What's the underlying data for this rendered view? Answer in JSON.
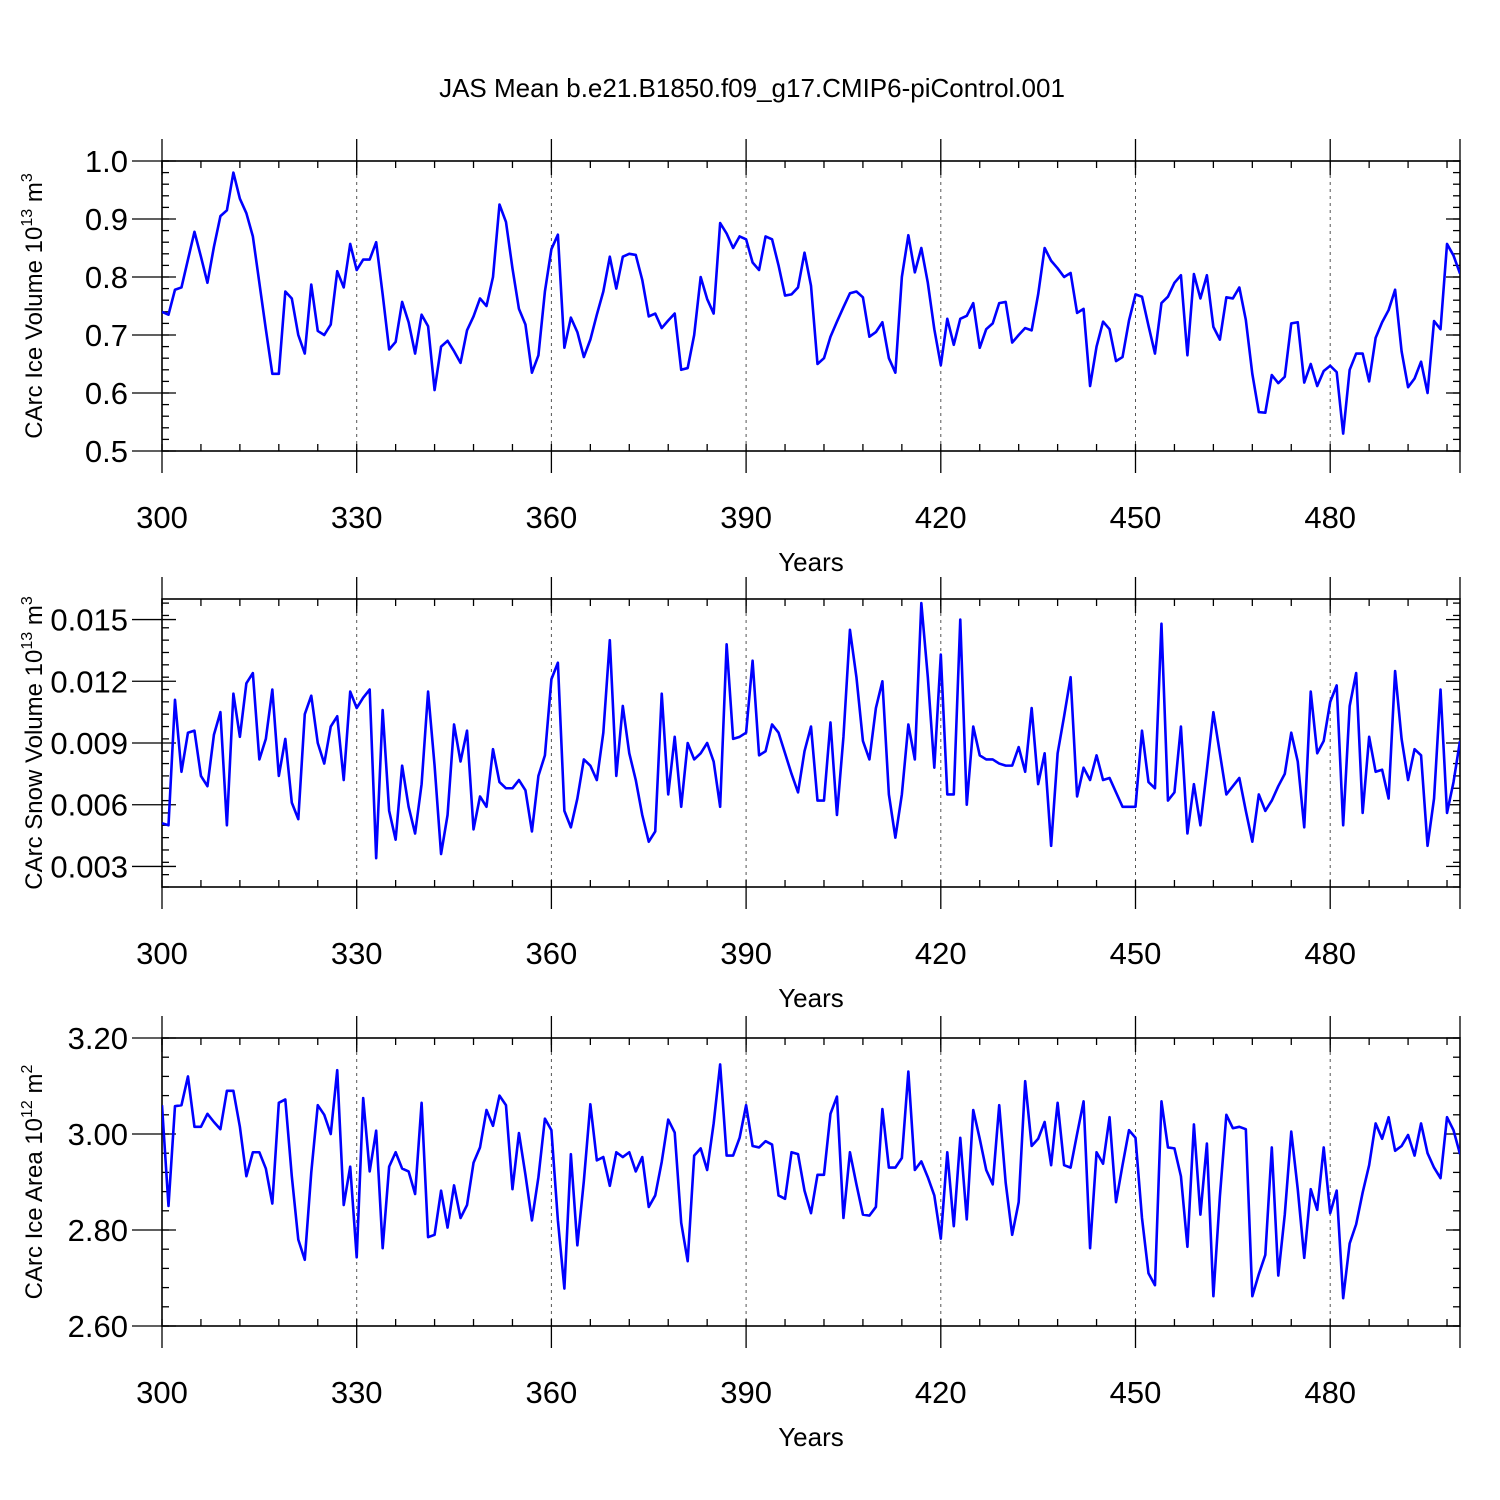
{
  "title": "JAS Mean b.e21.B1850.f09_g17.CMIP6-piControl.001",
  "series_color": "#0000ff",
  "chart_data": [
    {
      "type": "line",
      "title": "JAS Mean b.e21.B1850.f09_g17.CMIP6-piControl.001",
      "xlabel": "Years",
      "ylabel": {
        "main": "CArc Ice Volume 10",
        "exp": "13",
        "unit": " m",
        "unit_exp": "3"
      },
      "xlim": [
        300,
        500
      ],
      "ylim": [
        0.5,
        1.0
      ],
      "xticks": [
        300,
        330,
        360,
        390,
        420,
        450,
        480
      ],
      "xtick_labels": [
        "300",
        "330",
        "360",
        "390",
        "420",
        "450",
        "480"
      ],
      "yticks": [
        0.5,
        0.6,
        0.7,
        0.8,
        0.9,
        1.0
      ],
      "ytick_labels": [
        "0.5",
        "0.6",
        "0.7",
        "0.8",
        "0.9",
        "1.0"
      ],
      "x_start": 300,
      "values": [
        0.74,
        0.735,
        0.778,
        0.782,
        0.83,
        0.878,
        0.835,
        0.79,
        0.852,
        0.905,
        0.915,
        0.98,
        0.935,
        0.91,
        0.87,
        0.79,
        0.71,
        0.633,
        0.633,
        0.775,
        0.763,
        0.7,
        0.668,
        0.787,
        0.707,
        0.7,
        0.718,
        0.81,
        0.782,
        0.857,
        0.812,
        0.83,
        0.83,
        0.86,
        0.77,
        0.675,
        0.688,
        0.757,
        0.722,
        0.668,
        0.735,
        0.715,
        0.605,
        0.68,
        0.69,
        0.672,
        0.652,
        0.708,
        0.732,
        0.763,
        0.75,
        0.8,
        0.925,
        0.895,
        0.815,
        0.745,
        0.718,
        0.635,
        0.665,
        0.775,
        0.848,
        0.873,
        0.678,
        0.73,
        0.705,
        0.662,
        0.692,
        0.735,
        0.775,
        0.835,
        0.78,
        0.835,
        0.84,
        0.838,
        0.795,
        0.732,
        0.737,
        0.712,
        0.725,
        0.737,
        0.64,
        0.643,
        0.7,
        0.8,
        0.762,
        0.737,
        0.893,
        0.875,
        0.85,
        0.87,
        0.865,
        0.825,
        0.812,
        0.87,
        0.865,
        0.82,
        0.768,
        0.77,
        0.782,
        0.842,
        0.785,
        0.65,
        0.66,
        0.697,
        0.723,
        0.748,
        0.772,
        0.775,
        0.765,
        0.697,
        0.705,
        0.722,
        0.66,
        0.635,
        0.8,
        0.872,
        0.808,
        0.85,
        0.79,
        0.71,
        0.648,
        0.728,
        0.683,
        0.728,
        0.733,
        0.755,
        0.678,
        0.71,
        0.72,
        0.755,
        0.757,
        0.687,
        0.7,
        0.712,
        0.708,
        0.77,
        0.85,
        0.828,
        0.815,
        0.8,
        0.807,
        0.738,
        0.745,
        0.612,
        0.68,
        0.723,
        0.71,
        0.655,
        0.662,
        0.725,
        0.77,
        0.766,
        0.716,
        0.668,
        0.755,
        0.766,
        0.79,
        0.803,
        0.665,
        0.805,
        0.763,
        0.803,
        0.714,
        0.692,
        0.765,
        0.763,
        0.782,
        0.726,
        0.633,
        0.567,
        0.566,
        0.631,
        0.617,
        0.628,
        0.72,
        0.722,
        0.618,
        0.65,
        0.612,
        0.638,
        0.647,
        0.636,
        0.53,
        0.64,
        0.668,
        0.668,
        0.62,
        0.695,
        0.722,
        0.743,
        0.778,
        0.672,
        0.61,
        0.625,
        0.654,
        0.6,
        0.724,
        0.71,
        0.857,
        0.837,
        0.806
      ]
    },
    {
      "type": "line",
      "title": "",
      "xlabel": "Years",
      "ylabel": {
        "main": "CArc Snow Volume 10",
        "exp": "13",
        "unit": " m",
        "unit_exp": "3"
      },
      "xlim": [
        300,
        500
      ],
      "ylim": [
        0.002,
        0.016
      ],
      "xticks": [
        300,
        330,
        360,
        390,
        420,
        450,
        480
      ],
      "xtick_labels": [
        "300",
        "330",
        "360",
        "390",
        "420",
        "450",
        "480"
      ],
      "yticks": [
        0.003,
        0.006,
        0.009,
        0.012,
        0.015
      ],
      "ytick_labels": [
        "0.003",
        "0.006",
        "0.009",
        "0.012",
        "0.015"
      ],
      "x_start": 300,
      "values": [
        0.0051,
        0.005,
        0.0111,
        0.0076,
        0.0095,
        0.0096,
        0.0074,
        0.0069,
        0.0094,
        0.0105,
        0.005,
        0.0114,
        0.0093,
        0.0119,
        0.0124,
        0.0082,
        0.0092,
        0.0116,
        0.0074,
        0.0092,
        0.0061,
        0.0053,
        0.0104,
        0.0113,
        0.009,
        0.008,
        0.0098,
        0.0103,
        0.0072,
        0.0115,
        0.0107,
        0.0112,
        0.0116,
        0.0034,
        0.0106,
        0.0057,
        0.0043,
        0.0079,
        0.0059,
        0.0046,
        0.007,
        0.0115,
        0.0079,
        0.0036,
        0.0055,
        0.0099,
        0.0081,
        0.0096,
        0.0048,
        0.0064,
        0.0059,
        0.0087,
        0.0071,
        0.0068,
        0.0068,
        0.0072,
        0.0067,
        0.0047,
        0.0074,
        0.0084,
        0.0121,
        0.0129,
        0.0057,
        0.0049,
        0.0063,
        0.0082,
        0.0079,
        0.0072,
        0.0095,
        0.014,
        0.0074,
        0.0108,
        0.0085,
        0.0072,
        0.0055,
        0.0042,
        0.0047,
        0.0114,
        0.0065,
        0.0093,
        0.0059,
        0.009,
        0.0082,
        0.0085,
        0.009,
        0.0081,
        0.0059,
        0.0138,
        0.0092,
        0.0093,
        0.0095,
        0.013,
        0.0084,
        0.0086,
        0.0099,
        0.0095,
        0.0085,
        0.0075,
        0.0066,
        0.0086,
        0.0098,
        0.0062,
        0.0062,
        0.01,
        0.0055,
        0.0093,
        0.0145,
        0.0122,
        0.0091,
        0.0082,
        0.0107,
        0.012,
        0.0065,
        0.0044,
        0.0065,
        0.0099,
        0.0082,
        0.0158,
        0.0122,
        0.0078,
        0.0133,
        0.0065,
        0.0065,
        0.015,
        0.006,
        0.0098,
        0.0084,
        0.0082,
        0.0082,
        0.008,
        0.0079,
        0.0079,
        0.0088,
        0.0076,
        0.0107,
        0.007,
        0.0085,
        0.004,
        0.0085,
        0.0103,
        0.0122,
        0.0064,
        0.0078,
        0.0072,
        0.0084,
        0.0072,
        0.0073,
        0.0066,
        0.0059,
        0.0059,
        0.0059,
        0.0096,
        0.0071,
        0.0068,
        0.0148,
        0.0062,
        0.0066,
        0.0098,
        0.0046,
        0.007,
        0.005,
        0.0077,
        0.0105,
        0.0085,
        0.0065,
        0.0069,
        0.0073,
        0.0057,
        0.0042,
        0.0065,
        0.0057,
        0.0062,
        0.0069,
        0.0075,
        0.0095,
        0.0081,
        0.0049,
        0.0115,
        0.0085,
        0.0091,
        0.011,
        0.0118,
        0.005,
        0.0108,
        0.0124,
        0.0056,
        0.0093,
        0.0076,
        0.0077,
        0.0063,
        0.0125,
        0.0092,
        0.0072,
        0.0087,
        0.0084,
        0.004,
        0.0063,
        0.0116,
        0.0056,
        0.0071,
        0.0091
      ]
    },
    {
      "type": "line",
      "title": "",
      "xlabel": "Years",
      "ylabel": {
        "main": "CArc Ice Area 10",
        "exp": "12",
        "unit": " m",
        "unit_exp": "2"
      },
      "xlim": [
        300,
        500
      ],
      "ylim": [
        2.6,
        3.2
      ],
      "xticks": [
        300,
        330,
        360,
        390,
        420,
        450,
        480
      ],
      "xtick_labels": [
        "300",
        "330",
        "360",
        "390",
        "420",
        "450",
        "480"
      ],
      "yticks": [
        2.6,
        2.8,
        3.0,
        3.2
      ],
      "ytick_labels": [
        "2.60",
        "2.80",
        "3.00",
        "3.20"
      ],
      "x_start": 300,
      "values": [
        3.06,
        2.85,
        3.058,
        3.06,
        3.12,
        3.015,
        3.015,
        3.042,
        3.025,
        3.01,
        3.09,
        3.09,
        3.015,
        2.912,
        2.962,
        2.962,
        2.928,
        2.855,
        3.065,
        3.072,
        2.912,
        2.78,
        2.738,
        2.92,
        3.06,
        3.04,
        3,
        3.133,
        2.852,
        2.932,
        2.743,
        3.075,
        2.922,
        3.007,
        2.762,
        2.932,
        2.962,
        2.928,
        2.922,
        2.875,
        3.065,
        2.785,
        2.79,
        2.882,
        2.805,
        2.893,
        2.825,
        2.852,
        2.94,
        2.972,
        3.05,
        3.017,
        3.08,
        3.06,
        2.885,
        3.002,
        2.915,
        2.82,
        2.91,
        3.032,
        3.008,
        2.82,
        2.678,
        2.958,
        2.768,
        2.902,
        3.062,
        2.945,
        2.952,
        2.892,
        2.962,
        2.952,
        2.962,
        2.922,
        2.952,
        2.848,
        2.872,
        2.942,
        3.03,
        3.003,
        2.815,
        2.735,
        2.955,
        2.97,
        2.925,
        3.022,
        3.145,
        2.955,
        2.955,
        2.992,
        3.06,
        2.975,
        2.972,
        2.985,
        2.978,
        2.872,
        2.865,
        2.962,
        2.958,
        2.882,
        2.835,
        2.915,
        2.915,
        3.042,
        3.078,
        2.825,
        2.962,
        2.895,
        2.832,
        2.83,
        2.848,
        3.052,
        2.93,
        2.93,
        2.95,
        3.13,
        2.925,
        2.943,
        2.91,
        2.872,
        2.782,
        2.962,
        2.808,
        2.992,
        2.822,
        3.05,
        2.99,
        2.925,
        2.895,
        3.06,
        2.898,
        2.79,
        2.858,
        3.11,
        2.975,
        2.99,
        3.025,
        2.935,
        3.065,
        2.935,
        2.93,
        3,
        3.068,
        2.762,
        2.962,
        2.938,
        3.035,
        2.858,
        2.935,
        3.008,
        2.992,
        2.825,
        2.71,
        2.685,
        3.068,
        2.972,
        2.97,
        2.912,
        2.765,
        3.02,
        2.832,
        2.98,
        2.662,
        2.87,
        3.04,
        3.012,
        3.015,
        3.01,
        2.662,
        2.708,
        2.748,
        2.972,
        2.705,
        2.832,
        3.005,
        2.885,
        2.742,
        2.885,
        2.842,
        2.972,
        2.835,
        2.882,
        2.658,
        2.772,
        2.812,
        2.878,
        2.935,
        3.022,
        2.99,
        3.035,
        2.965,
        2.975,
        2.998,
        2.955,
        3.022,
        2.96,
        2.93,
        2.908,
        3.035,
        3.008,
        2.958
      ]
    }
  ]
}
